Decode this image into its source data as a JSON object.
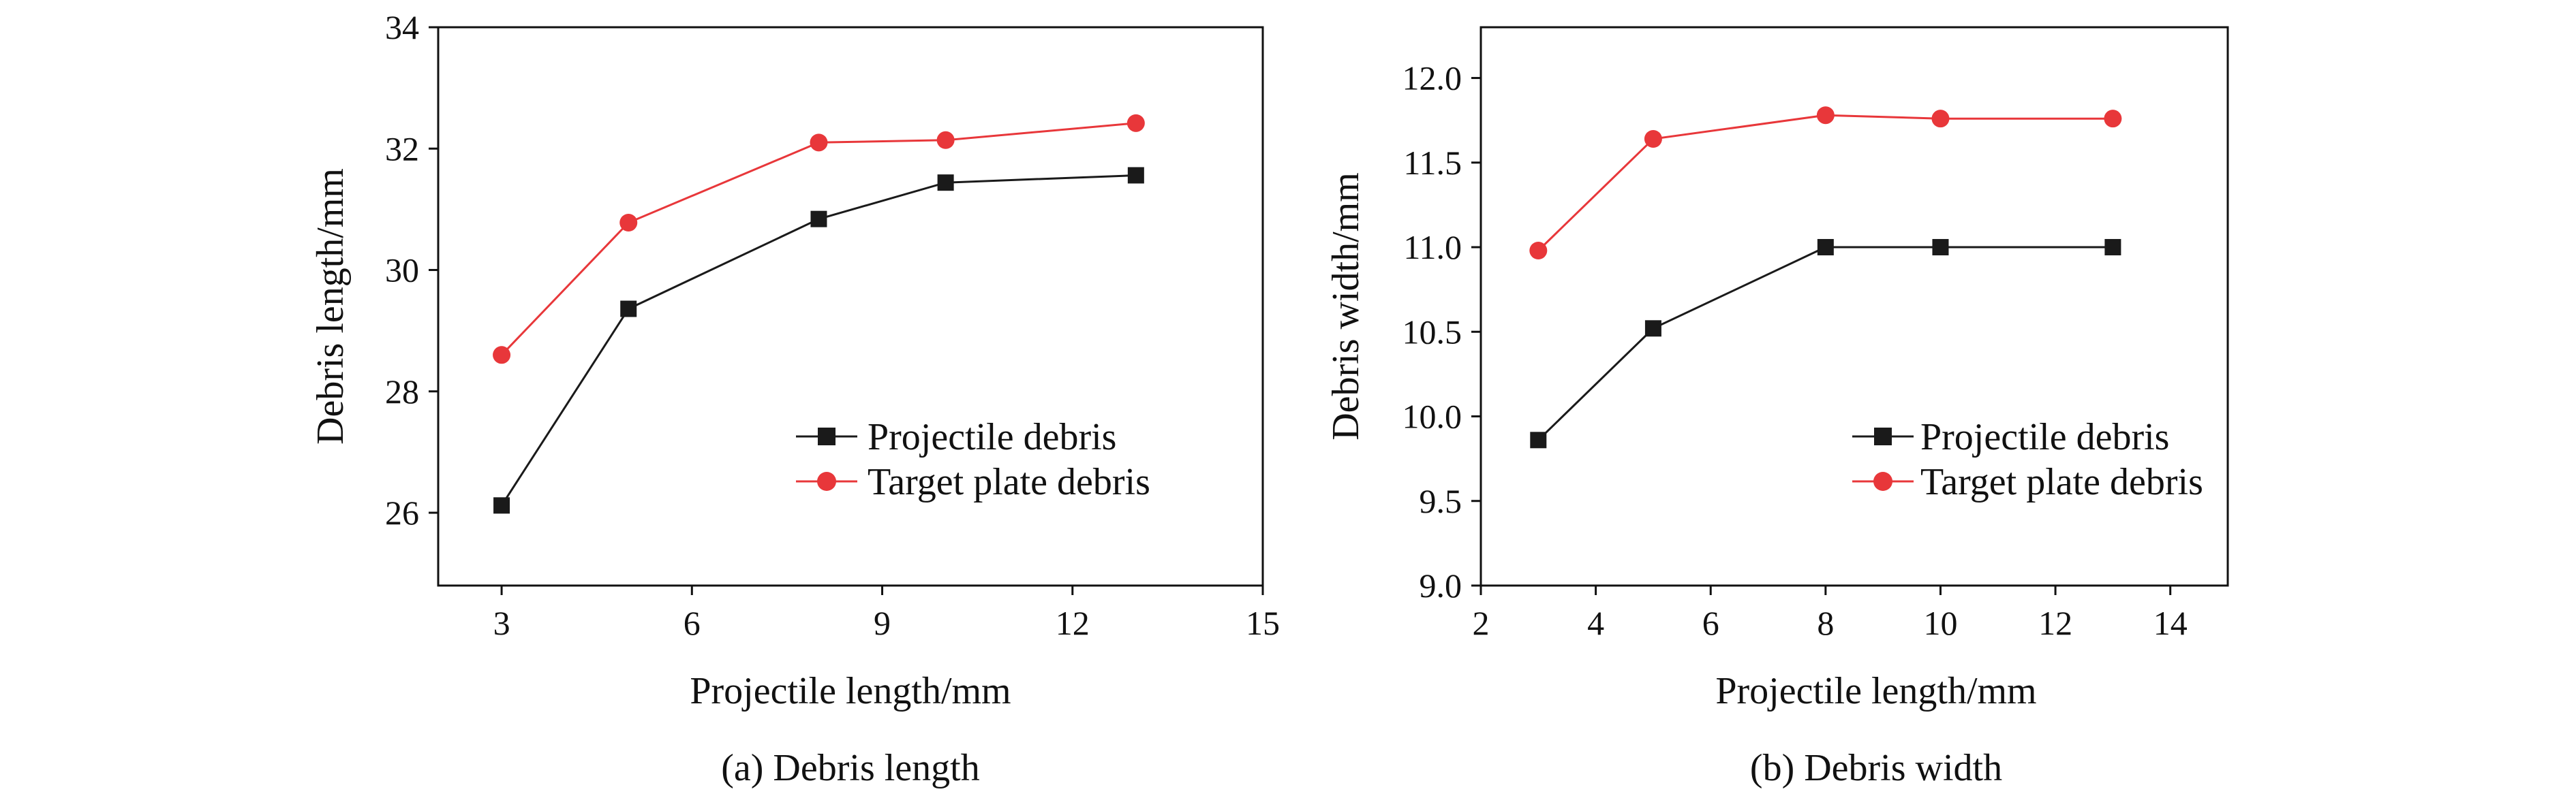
{
  "chart_data": [
    {
      "type": "line",
      "title": "",
      "caption": "(a) Debris length",
      "xlabel": "Projectile length/mm",
      "ylabel": "Debris length/mm",
      "xlim": [
        2,
        15
      ],
      "ylim": [
        24.8,
        34
      ],
      "xticks": [
        3,
        6,
        9,
        12,
        15
      ],
      "yticks": [
        26,
        28,
        30,
        32,
        34
      ],
      "xtick_labels": [
        "3",
        "6",
        "9",
        "12",
        "15"
      ],
      "ytick_labels": [
        "26",
        "28",
        "30",
        "32",
        "34"
      ],
      "legend_position": "right",
      "series": [
        {
          "name": "Projectile debris",
          "color": "#1a1a1a",
          "marker": "square",
          "x": [
            3,
            5,
            8,
            10,
            13
          ],
          "values": [
            26.12,
            29.36,
            30.84,
            31.44,
            31.56
          ]
        },
        {
          "name": "Target plate debris",
          "color": "#e8373a",
          "marker": "circle",
          "x": [
            3,
            5,
            8,
            10,
            13
          ],
          "values": [
            28.6,
            30.78,
            32.1,
            32.14,
            32.42
          ]
        }
      ]
    },
    {
      "type": "line",
      "title": "",
      "caption": "(b) Debris width",
      "xlabel": "Projectile length/mm",
      "ylabel": "Debris width/mm",
      "xlim": [
        2,
        15
      ],
      "ylim": [
        9.0,
        12.3
      ],
      "xticks": [
        2,
        4,
        6,
        8,
        10,
        12,
        14
      ],
      "yticks": [
        9.0,
        9.5,
        10.0,
        10.5,
        11.0,
        11.5,
        12.0
      ],
      "xtick_labels": [
        "2",
        "4",
        "6",
        "8",
        "10",
        "12",
        "14"
      ],
      "ytick_labels": [
        "9.0",
        "9.5",
        "10.0",
        "10.5",
        "11.0",
        "11.5",
        "12.0"
      ],
      "legend_position": "right",
      "series": [
        {
          "name": "Projectile debris",
          "color": "#1a1a1a",
          "marker": "square",
          "x": [
            3,
            5,
            8,
            10,
            13
          ],
          "values": [
            9.86,
            10.52,
            11.0,
            11.0,
            11.0
          ]
        },
        {
          "name": "Target plate debris",
          "color": "#e8373a",
          "marker": "circle",
          "x": [
            3,
            5,
            8,
            10,
            13
          ],
          "values": [
            10.98,
            11.64,
            11.78,
            11.76,
            11.76
          ]
        }
      ]
    }
  ]
}
